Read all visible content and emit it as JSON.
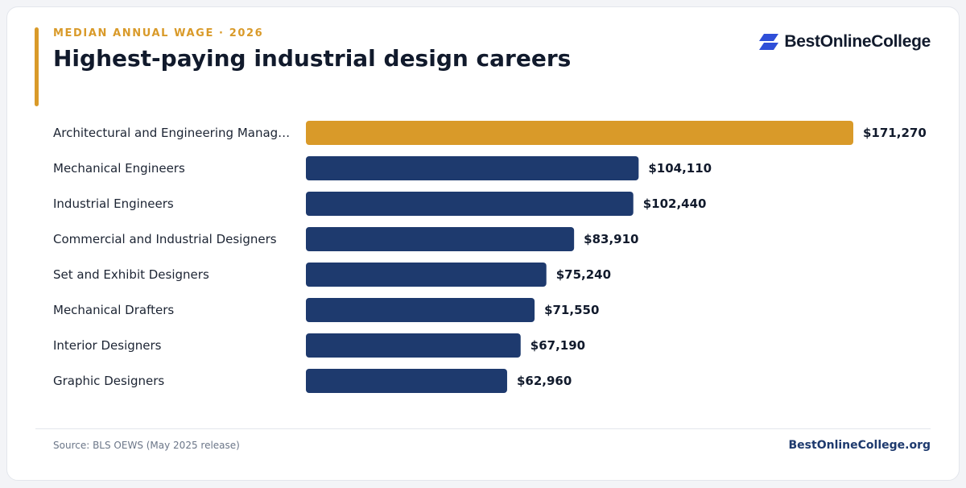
{
  "header": {
    "kicker": "MEDIAN ANNUAL WAGE · 2026",
    "title": "Highest-paying industrial design careers"
  },
  "brand": {
    "name": "BestOnlineCollege",
    "icon": "stacked-parallelogram-logo-icon",
    "icon_color": "#2f4fd8"
  },
  "colors": {
    "highlight": "#d99a29",
    "bar": "#1e3a6e",
    "site_link": "#1e3a6e"
  },
  "chart_data": {
    "type": "bar",
    "orientation": "horizontal",
    "title": "Highest-paying industrial design careers",
    "subtitle": "MEDIAN ANNUAL WAGE · 2026",
    "categories": [
      "Architectural and Engineering Manag…",
      "Mechanical Engineers",
      "Industrial Engineers",
      "Commercial and Industrial Designers",
      "Set and Exhibit Designers",
      "Mechanical Drafters",
      "Interior Designers",
      "Graphic Designers"
    ],
    "values": [
      171270,
      104110,
      102440,
      83910,
      75240,
      71550,
      67190,
      62960
    ],
    "value_labels": [
      "$171,270",
      "$104,110",
      "$102,440",
      "$83,910",
      "$75,240",
      "$71,550",
      "$67,190",
      "$62,960"
    ],
    "highlighted_index": 0,
    "xlabel": "",
    "ylabel": "",
    "xlim": [
      0,
      171270
    ],
    "grid": false,
    "legend": "none"
  },
  "footer": {
    "source": "Source: BLS OEWS (May 2025 release)",
    "site": "BestOnlineCollege.org"
  }
}
